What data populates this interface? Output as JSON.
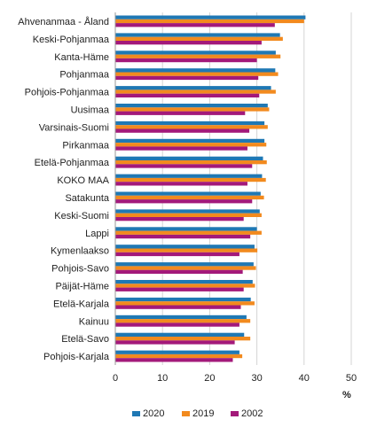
{
  "chart_data": {
    "type": "bar",
    "orientation": "horizontal",
    "categories": [
      "Ahvenanmaa - Åland",
      "Keski-Pohjanmaa",
      "Kanta-Häme",
      "Pohjanmaa",
      "Pohjois-Pohjanmaa",
      "Uusimaa",
      "Varsinais-Suomi",
      "Pirkanmaa",
      "Etelä-Pohjanmaa",
      "KOKO MAA",
      "Satakunta",
      "Keski-Suomi",
      "Lappi",
      "Kymenlaakso",
      "Pohjois-Savo",
      "Päijät-Häme",
      "Etelä-Karjala",
      "Kainuu",
      "Etelä-Savo",
      "Pohjois-Karjala"
    ],
    "series": [
      {
        "name": "2020",
        "color": "#1f78b4",
        "values": [
          40.3,
          34.9,
          34.0,
          33.9,
          33.0,
          32.3,
          31.6,
          31.6,
          31.3,
          31.1,
          30.8,
          30.6,
          30.0,
          29.5,
          29.3,
          29.1,
          28.7,
          27.8,
          27.3,
          26.3
        ]
      },
      {
        "name": "2019",
        "color": "#f28a1e",
        "values": [
          40.0,
          35.5,
          35.0,
          34.5,
          34.0,
          32.6,
          32.3,
          32.0,
          32.1,
          31.9,
          31.5,
          31.0,
          31.0,
          30.1,
          29.8,
          29.6,
          29.5,
          28.6,
          28.6,
          26.9
        ]
      },
      {
        "name": "2002",
        "color": "#a3197a",
        "values": [
          33.8,
          31.0,
          30.0,
          30.3,
          30.5,
          27.5,
          28.4,
          28.0,
          29.0,
          28.0,
          29.0,
          27.2,
          28.6,
          26.3,
          27.0,
          27.2,
          26.6,
          26.3,
          25.3,
          24.9
        ]
      }
    ],
    "xlim": [
      0,
      50
    ],
    "xticks": [
      "0",
      "10",
      "20",
      "30",
      "40",
      "50"
    ],
    "unit_label": "%",
    "grid": true,
    "legend_position": "bottom",
    "legend": [
      "2020",
      "2019",
      "2002"
    ]
  }
}
